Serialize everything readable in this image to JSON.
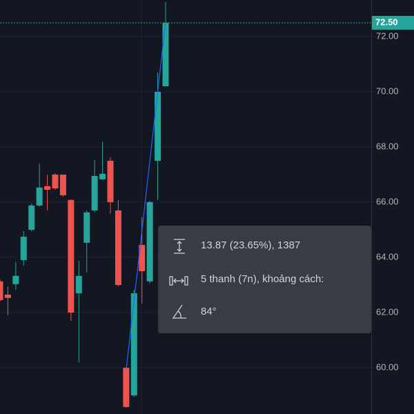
{
  "chart_data": {
    "type": "candlestick",
    "open": [
      63.13,
      62.65,
      63.03,
      63.9,
      65.0,
      65.88,
      66.58,
      67.0,
      67.0,
      66.08,
      62.7,
      64.53,
      65.7,
      66.83,
      67.5,
      65.7,
      60.0,
      59.0,
      64.45,
      63.13,
      67.5,
      70.2
    ],
    "high": [
      63.2,
      62.95,
      63.83,
      64.95,
      65.95,
      67.4,
      67.0,
      67.05,
      67.0,
      66.1,
      63.88,
      65.7,
      67.53,
      68.2,
      67.63,
      66.08,
      60.05,
      62.83,
      65.45,
      66.05,
      70.7,
      73.25
    ],
    "low": [
      62.4,
      61.9,
      62.83,
      63.7,
      64.95,
      65.83,
      65.7,
      66.45,
      66.2,
      61.7,
      60.2,
      63.45,
      65.63,
      66.8,
      65.58,
      62.95,
      58.55,
      58.95,
      62.33,
      63.05,
      66.08,
      70.2
    ],
    "close": [
      62.45,
      62.53,
      63.33,
      64.75,
      65.88,
      66.53,
      66.45,
      66.5,
      66.25,
      62.0,
      63.33,
      65.63,
      66.95,
      67.03,
      66.0,
      63.0,
      58.58,
      62.7,
      63.5,
      66.0,
      70.0,
      72.5
    ],
    "up_color": "#26a69a",
    "down_color": "#ef5350",
    "ylim": [
      58.325,
      73.325
    ],
    "yticks": [
      {
        "value": 60,
        "label": "60.00"
      },
      {
        "value": 62,
        "label": "62.00"
      },
      {
        "value": 64,
        "label": "64.00"
      },
      {
        "value": 66,
        "label": "66.00"
      },
      {
        "value": 68,
        "label": "68.00"
      },
      {
        "value": 70,
        "label": "70.00"
      },
      {
        "value": 72,
        "label": "72.00"
      }
    ],
    "grid": true,
    "last_price": {
      "value": 72.5,
      "label": "72.50"
    },
    "measure": {
      "price_range": "13.87 (23.65%), 1387",
      "bar_range": "5 thanh (7n), khoảng cách:",
      "angle": "84°"
    }
  }
}
